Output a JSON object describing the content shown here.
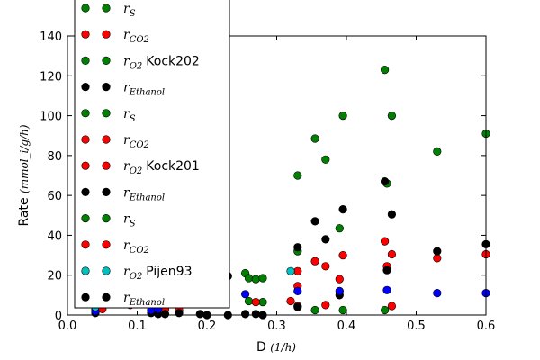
{
  "chart_data": {
    "type": "scatter",
    "title": "",
    "xlabel": "D",
    "xlabel_unit": "(1/h)",
    "ylabel": "Rate",
    "ylabel_unit": "(mmol_i/g/h)",
    "xlim": [
      0,
      0.6
    ],
    "ylim": [
      0,
      140
    ],
    "x_ticks": [
      0.0,
      0.1,
      0.2,
      0.3,
      0.4,
      0.5,
      0.6
    ],
    "x_tick_labels": [
      "0.0",
      "0.1",
      "0.2",
      "0.3",
      "0.4",
      "0.5",
      "0.6"
    ],
    "y_ticks": [
      0,
      20,
      40,
      60,
      80,
      100,
      120,
      140
    ],
    "y_tick_labels": [
      "0",
      "20",
      "40",
      "60",
      "80",
      "100",
      "120",
      "140"
    ],
    "grid": false,
    "legend_placement": "upper-left (overflows above plot)",
    "legend": [
      {
        "label": "r_S",
        "color": "#008000"
      },
      {
        "label": "r_CO2",
        "color": "#ff0000"
      },
      {
        "label": "r_O2 Kock202",
        "color": "#008000"
      },
      {
        "label": "r_Ethanol",
        "color": "#000000"
      },
      {
        "label": "r_S",
        "color": "#008000"
      },
      {
        "label": "r_CO2",
        "color": "#ff0000"
      },
      {
        "label": "r_O2 Kock201",
        "color": "#ff0000"
      },
      {
        "label": "r_Ethanol",
        "color": "#000000"
      },
      {
        "label": "r_S",
        "color": "#008000"
      },
      {
        "label": "r_CO2",
        "color": "#ff0000"
      },
      {
        "label": "r_O2 Pijen93",
        "color": "#00bfbf"
      },
      {
        "label": "r_Ethanol",
        "color": "#000000"
      }
    ],
    "series": [
      {
        "color": "#008000",
        "points": [
          [
            0.255,
            21
          ],
          [
            0.26,
            18.5
          ],
          [
            0.27,
            18
          ],
          [
            0.28,
            18.5
          ],
          [
            0.33,
            32
          ],
          [
            0.33,
            70
          ],
          [
            0.355,
            88.5
          ],
          [
            0.37,
            78
          ],
          [
            0.39,
            43.5
          ],
          [
            0.395,
            100
          ],
          [
            0.455,
            123
          ],
          [
            0.458,
            66
          ],
          [
            0.465,
            100
          ],
          [
            0.53,
            82
          ],
          [
            0.6,
            91
          ],
          [
            0.26,
            7
          ],
          [
            0.28,
            6.5
          ],
          [
            0.355,
            2.5
          ],
          [
            0.395,
            2.5
          ],
          [
            0.455,
            2.5
          ],
          [
            0.04,
            3
          ]
        ]
      },
      {
        "color": "#ff0000",
        "points": [
          [
            0.27,
            6.5
          ],
          [
            0.32,
            7
          ],
          [
            0.33,
            14.5
          ],
          [
            0.33,
            22
          ],
          [
            0.33,
            4.5
          ],
          [
            0.355,
            27
          ],
          [
            0.37,
            24.5
          ],
          [
            0.37,
            5
          ],
          [
            0.39,
            18
          ],
          [
            0.395,
            30
          ],
          [
            0.455,
            37
          ],
          [
            0.458,
            24.5
          ],
          [
            0.465,
            30.5
          ],
          [
            0.465,
            4.5
          ],
          [
            0.53,
            28.5
          ],
          [
            0.6,
            30.5
          ],
          [
            0.05,
            3
          ],
          [
            0.09,
            5
          ],
          [
            0.12,
            2.5
          ],
          [
            0.14,
            3
          ],
          [
            0.16,
            2.5
          ]
        ]
      },
      {
        "color": "#000000",
        "points": [
          [
            0.23,
            19.5
          ],
          [
            0.255,
            0.5
          ],
          [
            0.27,
            0.5
          ],
          [
            0.28,
            0
          ],
          [
            0.33,
            34
          ],
          [
            0.33,
            4
          ],
          [
            0.355,
            47
          ],
          [
            0.37,
            38
          ],
          [
            0.39,
            10
          ],
          [
            0.395,
            53
          ],
          [
            0.455,
            67
          ],
          [
            0.458,
            22.5
          ],
          [
            0.465,
            50.5
          ],
          [
            0.53,
            32
          ],
          [
            0.6,
            35.5
          ],
          [
            0.2,
            0
          ],
          [
            0.23,
            0
          ],
          [
            0.19,
            0.5
          ],
          [
            0.13,
            0.5
          ],
          [
            0.14,
            0.5
          ],
          [
            0.12,
            1
          ],
          [
            0.16,
            1
          ],
          [
            0.04,
            1
          ]
        ]
      },
      {
        "color": "#0000ff",
        "points": [
          [
            0.255,
            10.5
          ],
          [
            0.33,
            12
          ],
          [
            0.39,
            12
          ],
          [
            0.458,
            12.5
          ],
          [
            0.53,
            11
          ],
          [
            0.6,
            11
          ],
          [
            0.04,
            2
          ],
          [
            0.12,
            2.5
          ],
          [
            0.13,
            3
          ]
        ]
      },
      {
        "color": "#00bfbf",
        "points": [
          [
            0.32,
            22
          ],
          [
            0.04,
            4
          ]
        ]
      }
    ]
  }
}
